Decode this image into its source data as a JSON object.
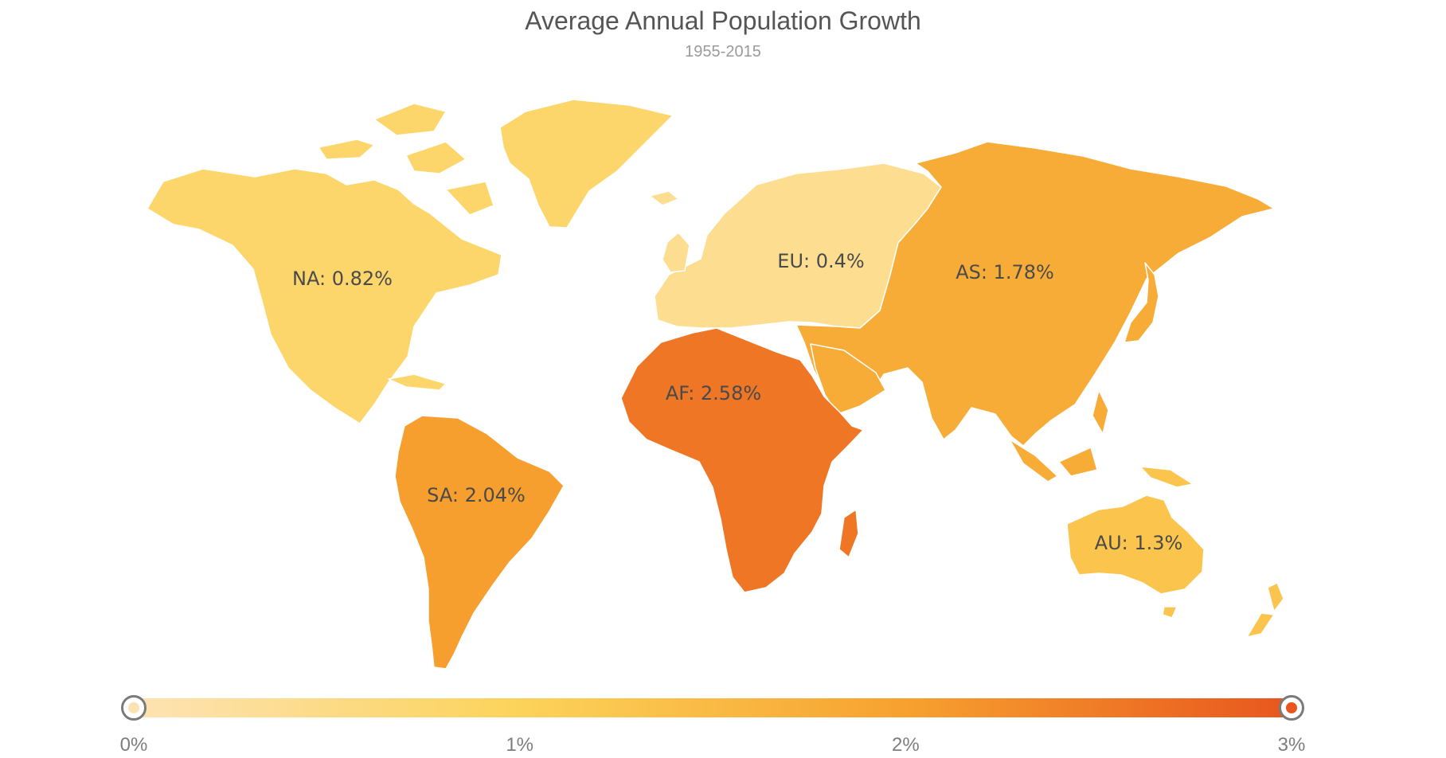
{
  "title": "Average Annual Population Growth",
  "subtitle": "1955-2015",
  "map_data": {
    "type": "choropleth",
    "unit": "%",
    "regions": [
      {
        "code": "NA",
        "label": "NA: 0.82%",
        "value": 0.82
      },
      {
        "code": "EU",
        "label": "EU: 0.4%",
        "value": 0.4
      },
      {
        "code": "AS",
        "label": "AS: 1.78%",
        "value": 1.78
      },
      {
        "code": "AF",
        "label": "AF: 2.58%",
        "value": 2.58
      },
      {
        "code": "SA",
        "label": "SA: 2.04%",
        "value": 2.04
      },
      {
        "code": "AU",
        "label": "AU: 1.3%",
        "value": 1.3
      }
    ]
  },
  "legend": {
    "min": 0,
    "max": 3,
    "ticks": [
      "0%",
      "1%",
      "2%",
      "3%"
    ],
    "range_low": 0,
    "range_high": 3,
    "colors": [
      "#fde3b4",
      "#fcd35a",
      "#f7a12f",
      "#e8561e"
    ]
  }
}
